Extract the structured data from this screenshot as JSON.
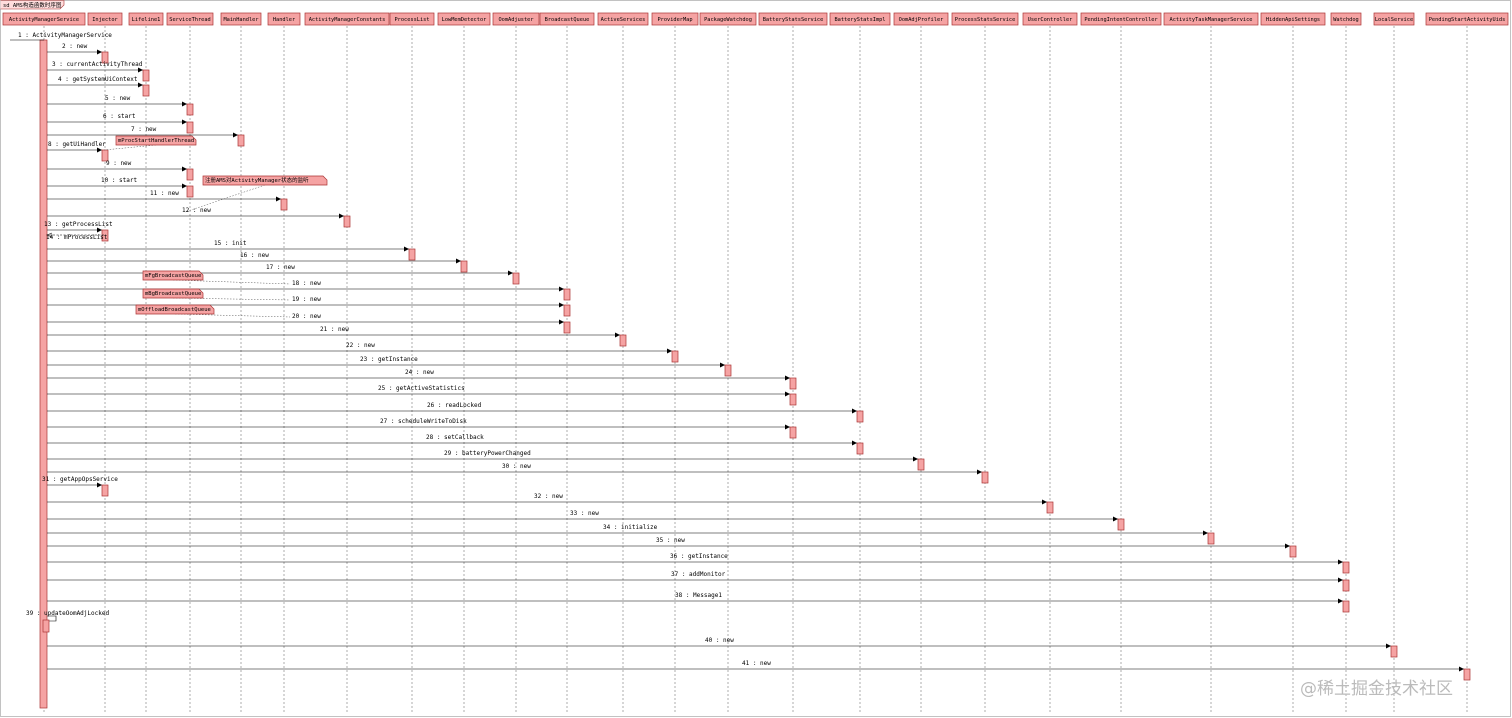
{
  "frame_title": "sd AMS构造函数时序图",
  "participants": [
    "ActivityManagerService",
    "Injector",
    "Lifeline1",
    "ServiceThread",
    "MainHandler",
    "Handler",
    "ActivityManagerConstants",
    "ProcessList",
    "LowMemDetector",
    "OomAdjuster",
    "BroadcastQueue",
    "ActiveServices",
    "ProviderMap",
    "PackageWatchdog",
    "BatteryStatsService",
    "BatteryStatsImpl",
    "OomAdjProfiler",
    "ProcessStatsService",
    "UserController",
    "PendingIntentController",
    "ActivityTaskManagerService",
    "HiddenApiSettings",
    "Watchdog",
    "LocalService",
    "PendingStartActivityUids"
  ],
  "messages": [
    "1 : ActivityManagerService",
    "2 : new",
    "3 : currentActivityThread",
    "4 : getSystemUiContext",
    "5 : new",
    "6 : start",
    "7 : new",
    "8 : getUiHandler",
    "9 : new",
    "10 : start",
    "11 : new",
    "12 : new",
    "13 : getProcessList",
    "14 : mProcessList",
    "15 : init",
    "16 : new",
    "17 : new",
    "18 : new",
    "19 : new",
    "20 : new",
    "21 : new",
    "22 : new",
    "23 : getInstance",
    "24 : new",
    "25 : getActiveStatistics",
    "26 : readLocked",
    "27 : scheduleWriteToDisk",
    "28 : setCallback",
    "29 : batteryPowerChanged",
    "30 : new",
    "31 : getAppOpsService",
    "32 : new",
    "33 : new",
    "34 : initialize",
    "35 : new",
    "36 : getInstance",
    "37 : addMonitor",
    "38 : Message1",
    "39 : updateOomAdjLocked",
    "40 : new",
    "41 : new"
  ],
  "notes": [
    "mProcStartHandlerThread",
    "注册AMS对ActivityManager状态的监听",
    "mFgBroadcastQueue",
    "mBgBroadcastQueue",
    "mOffloadBroadcastQueue"
  ],
  "watermark": "@稀土掘金技术社区"
}
